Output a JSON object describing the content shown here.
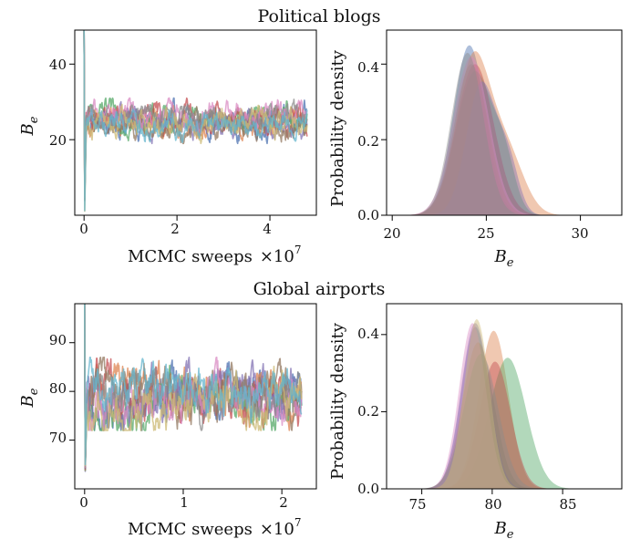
{
  "sections": [
    {
      "title": "Political blogs",
      "trace": {
        "xlabel": "MCMC sweeps",
        "xscale_label": "×10",
        "xscale_exp": "7",
        "ylabel_base": "B",
        "ylabel_sub": "e",
        "xticks": [
          "0",
          "2",
          "4"
        ],
        "yticks": [
          "20",
          "40"
        ]
      },
      "density": {
        "xlabel_base": "B",
        "xlabel_sub": "e",
        "ylabel": "Probability density",
        "xticks": [
          "20",
          "25",
          "30"
        ],
        "yticks": [
          "0.0",
          "0.2",
          "0.4"
        ]
      }
    },
    {
      "title": "Global airports",
      "trace": {
        "xlabel": "MCMC sweeps",
        "xscale_label": "×10",
        "xscale_exp": "7",
        "ylabel_base": "B",
        "ylabel_sub": "e",
        "xticks": [
          "0",
          "1",
          "2"
        ],
        "yticks": [
          "70",
          "80",
          "90"
        ]
      },
      "density": {
        "xlabel_base": "B",
        "xlabel_sub": "e",
        "ylabel": "Probability density",
        "xticks": [
          "75",
          "80",
          "85"
        ],
        "yticks": [
          "0.0",
          "0.2",
          "0.4"
        ]
      }
    }
  ],
  "colors": [
    "#4c72b0",
    "#dd8452",
    "#55a868",
    "#c44e52",
    "#8172b3",
    "#937860",
    "#da8bc3",
    "#8c8c8c",
    "#ccb974",
    "#64b5cd"
  ],
  "chart_data": [
    {
      "type": "line",
      "title": "Political blogs",
      "xlabel": "MCMC sweeps ×10^7",
      "ylabel": "B_e",
      "xlim": [
        -0.2,
        5.0
      ],
      "ylim": [
        0,
        49
      ],
      "xticks": [
        0,
        2,
        4
      ],
      "yticks": [
        20,
        40
      ],
      "series_count": 10,
      "initial_spike_max": 49,
      "stationary_mean": 25,
      "stationary_range": [
        21,
        30
      ],
      "x_end": 4.8
    },
    {
      "type": "area",
      "title": "Political blogs",
      "xlabel": "B_e",
      "ylabel": "Probability density",
      "xlim": [
        19.7,
        32.2
      ],
      "ylim": [
        0,
        0.49
      ],
      "xticks": [
        20,
        25,
        30
      ],
      "yticks": [
        0.0,
        0.2,
        0.4
      ],
      "series": [
        {
          "values": [
            {
              "mu": 24.1,
              "sigma": 0.85,
              "peak": 0.45
            }
          ]
        },
        {
          "values": [
            {
              "mu": 24.3,
              "sigma": 0.9,
              "peak": 0.41
            },
            {
              "mu": 26.1,
              "sigma": 0.9,
              "peak": 0.16
            }
          ]
        },
        {
          "values": [
            {
              "mu": 24.4,
              "sigma": 1.0,
              "peak": 0.38
            },
            {
              "mu": 26.0,
              "sigma": 0.55,
              "peak": 0.1
            }
          ]
        },
        {
          "values": [
            {
              "mu": 24.4,
              "sigma": 1.0,
              "peak": 0.4
            }
          ]
        },
        {
          "values": [
            {
              "mu": 24.75,
              "sigma": 0.8,
              "peak": 0.35
            },
            {
              "mu": 26.2,
              "sigma": 0.55,
              "peak": 0.12
            }
          ]
        },
        {
          "values": [
            {
              "mu": 24.2,
              "sigma": 0.9,
              "peak": 0.4
            }
          ]
        },
        {
          "values": [
            {
              "mu": 24.2,
              "sigma": 0.95,
              "peak": 0.42
            }
          ]
        },
        {
          "values": [
            {
              "mu": 24.0,
              "sigma": 0.85,
              "peak": 0.43
            }
          ]
        }
      ]
    },
    {
      "type": "line",
      "title": "Global airports",
      "xlabel": "MCMC sweeps ×10^7",
      "ylabel": "B_e",
      "xlim": [
        -0.1,
        2.35
      ],
      "ylim": [
        60,
        98
      ],
      "xticks": [
        0,
        1,
        2
      ],
      "yticks": [
        70,
        80,
        90
      ],
      "series_count": 10,
      "initial_spike_max": 98,
      "stationary_mean": 79,
      "stationary_range": [
        74,
        86
      ],
      "x_end": 2.2
    },
    {
      "type": "area",
      "title": "Global airports",
      "xlabel": "B_e",
      "ylabel": "Probability density",
      "xlim": [
        72.5,
        89.2
      ],
      "ylim": [
        0,
        0.48
      ],
      "xticks": [
        75,
        80,
        85
      ],
      "yticks": [
        0.0,
        0.2,
        0.4
      ],
      "series": [
        {
          "values": [
            {
              "mu": 78.8,
              "sigma": 1.0,
              "peak": 0.42
            }
          ]
        },
        {
          "values": [
            {
              "mu": 80.1,
              "sigma": 1.05,
              "peak": 0.41
            }
          ]
        },
        {
          "values": [
            {
              "mu": 81.1,
              "sigma": 1.3,
              "peak": 0.34
            }
          ]
        },
        {
          "values": [
            {
              "mu": 80.2,
              "sigma": 1.1,
              "peak": 0.33
            }
          ]
        },
        {
          "values": [
            {
              "mu": 78.8,
              "sigma": 1.0,
              "peak": 0.43
            }
          ]
        },
        {
          "values": [
            {
              "mu": 79.0,
              "sigma": 1.1,
              "peak": 0.38
            }
          ]
        },
        {
          "values": [
            {
              "mu": 78.6,
              "sigma": 0.95,
              "peak": 0.43
            }
          ]
        },
        {
          "values": [
            {
              "mu": 79.2,
              "sigma": 1.2,
              "peak": 0.35
            }
          ]
        },
        {
          "values": [
            {
              "mu": 78.9,
              "sigma": 0.9,
              "peak": 0.44
            }
          ]
        }
      ]
    }
  ]
}
